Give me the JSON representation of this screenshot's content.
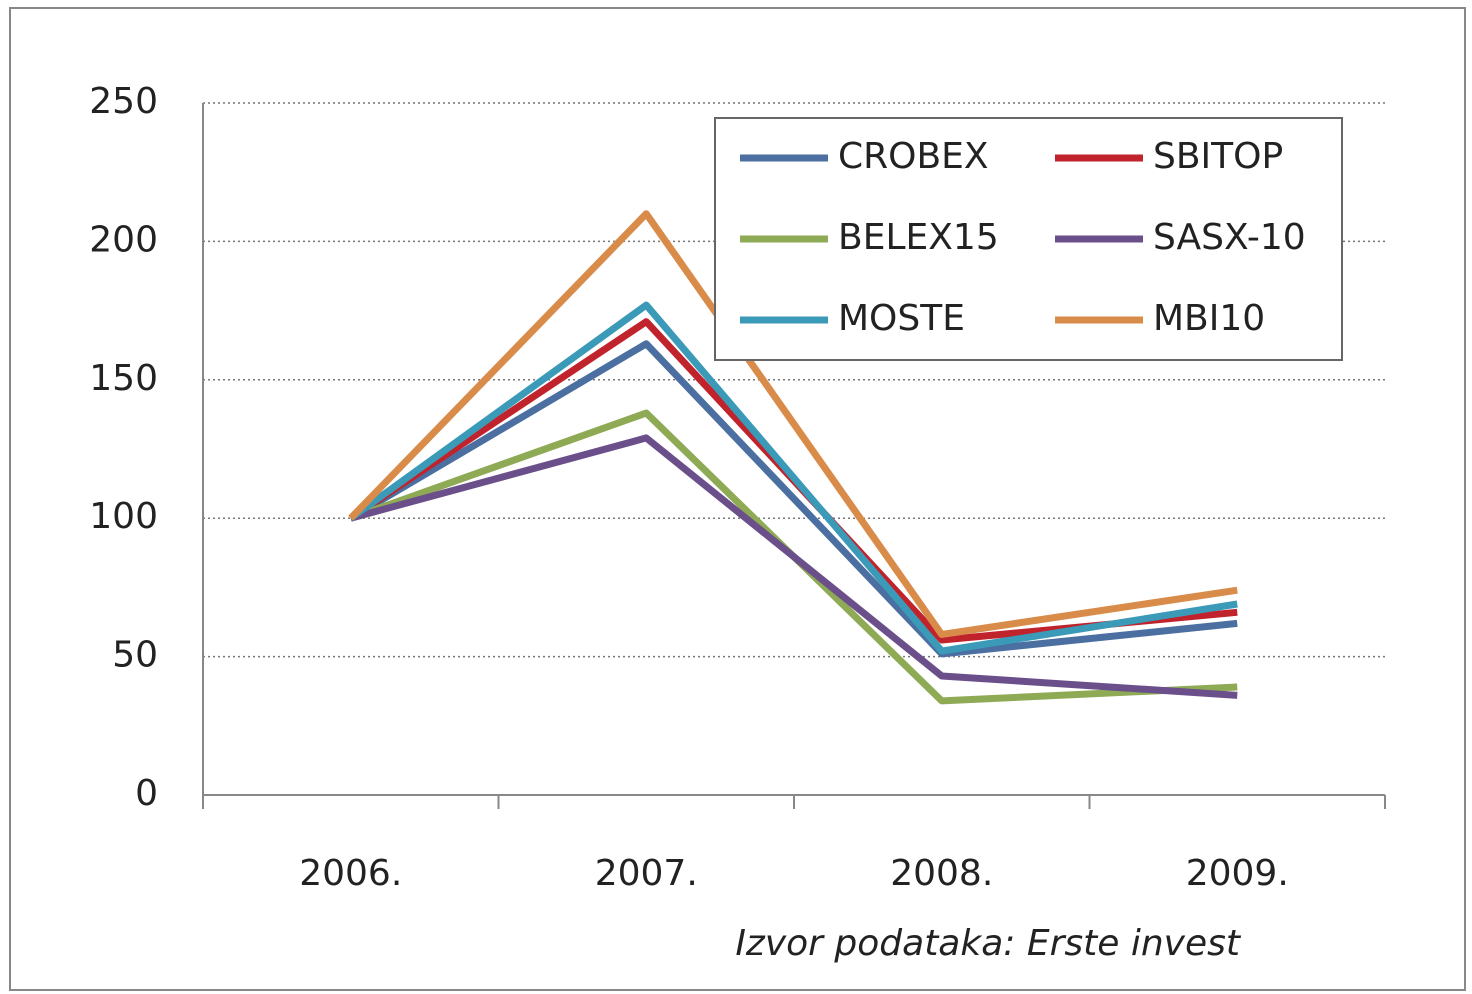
{
  "chart_data": {
    "type": "line",
    "categories": [
      "2006.",
      "2007.",
      "2008.",
      "2009."
    ],
    "series": [
      {
        "name": "CROBEX",
        "color": "#4a6fa0",
        "values": [
          100,
          163,
          51,
          62
        ]
      },
      {
        "name": "SBITOP",
        "color": "#c0232b",
        "values": [
          100,
          171,
          56,
          66
        ]
      },
      {
        "name": "BELEX15",
        "color": "#8faa55",
        "values": [
          100,
          138,
          34,
          39
        ]
      },
      {
        "name": "SASX-10",
        "color": "#6b4f8a",
        "values": [
          100,
          129,
          43,
          36
        ]
      },
      {
        "name": "MOSTE",
        "color": "#3a9ab8",
        "values": [
          100,
          177,
          52,
          69
        ]
      },
      {
        "name": "MBI10",
        "color": "#d98c4a",
        "values": [
          100,
          210,
          58,
          74
        ]
      }
    ],
    "ylim": [
      0,
      250
    ],
    "yticks": [
      0,
      50,
      100,
      150,
      200,
      250
    ],
    "grid": true,
    "note": "Izvor podataka: Erste invest"
  }
}
